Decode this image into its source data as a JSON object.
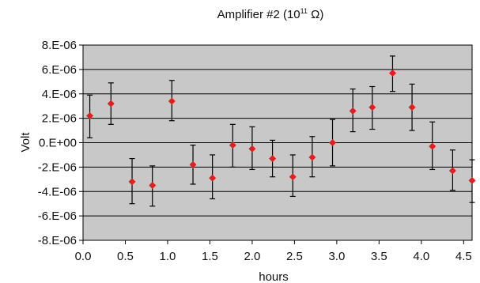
{
  "chart_data": {
    "type": "scatter",
    "title": "Amplifier #2 (10",
    "title_sup": "11",
    "title_suffix": " Ω)",
    "xlabel": "hours",
    "ylabel": "Volt",
    "xlim": [
      0.0,
      4.6
    ],
    "ylim": [
      -8e-06,
      8e-06
    ],
    "grid": true,
    "x_ticks": [
      0.0,
      0.5,
      1.0,
      1.5,
      2.0,
      2.5,
      3.0,
      3.5,
      4.0,
      4.5
    ],
    "x_tick_labels": [
      "0.0",
      "0.5",
      "1.0",
      "1.5",
      "2.0",
      "2.5",
      "3.0",
      "3.5",
      "4.0",
      "4.5"
    ],
    "y_ticks": [
      8e-06,
      6e-06,
      4e-06,
      2e-06,
      0,
      -2e-06,
      -4e-06,
      -6e-06,
      -8e-06
    ],
    "y_tick_labels": [
      "8.E-06",
      "6.E-06",
      "4.E-06",
      "2.E-06",
      "0.E+00",
      "-2.E-06",
      "-4.E-06",
      "-6.E-06",
      "-8.E-06"
    ],
    "colors": {
      "plot_background": "#c8c8c8",
      "marker": "#e02020",
      "error_bar": "#000000",
      "grid": "#000000"
    },
    "points": [
      {
        "x": 0.08,
        "y": 2.2e-06,
        "lo": 4e-07,
        "hi": 3.9e-06
      },
      {
        "x": 0.33,
        "y": 3.2e-06,
        "lo": 1.5e-06,
        "hi": 4.9e-06
      },
      {
        "x": 0.58,
        "y": -3.2e-06,
        "lo": -5e-06,
        "hi": -1.3e-06
      },
      {
        "x": 0.82,
        "y": -3.5e-06,
        "lo": -5.2e-06,
        "hi": -1.9e-06
      },
      {
        "x": 1.05,
        "y": 3.4e-06,
        "lo": 1.8e-06,
        "hi": 5.1e-06
      },
      {
        "x": 1.3,
        "y": -1.8e-06,
        "lo": -3.4e-06,
        "hi": -2e-07
      },
      {
        "x": 1.53,
        "y": -2.9e-06,
        "lo": -4.6e-06,
        "hi": -1e-06
      },
      {
        "x": 1.77,
        "y": -2e-07,
        "lo": -2e-06,
        "hi": 1.5e-06
      },
      {
        "x": 2.0,
        "y": -5e-07,
        "lo": -2.2e-06,
        "hi": 1.3e-06
      },
      {
        "x": 2.24,
        "y": -1.3e-06,
        "lo": -2.8e-06,
        "hi": 2e-07
      },
      {
        "x": 2.48,
        "y": -2.8e-06,
        "lo": -4.4e-06,
        "hi": -1e-06
      },
      {
        "x": 2.71,
        "y": -1.2e-06,
        "lo": -2.8e-06,
        "hi": 5e-07
      },
      {
        "x": 2.95,
        "y": 0.0,
        "lo": -1.9e-06,
        "hi": 1.9e-06
      },
      {
        "x": 3.19,
        "y": 2.6e-06,
        "lo": 9e-07,
        "hi": 4.4e-06
      },
      {
        "x": 3.42,
        "y": 2.9e-06,
        "lo": 1.1e-06,
        "hi": 4.6e-06
      },
      {
        "x": 3.66,
        "y": 5.7e-06,
        "lo": 4.2e-06,
        "hi": 7.1e-06
      },
      {
        "x": 3.89,
        "y": 2.9e-06,
        "lo": 1e-06,
        "hi": 4.8e-06
      },
      {
        "x": 4.13,
        "y": -3e-07,
        "lo": -2.2e-06,
        "hi": 1.7e-06
      },
      {
        "x": 4.37,
        "y": -2.3e-06,
        "lo": -3.9e-06,
        "hi": -6e-07
      },
      {
        "x": 4.6,
        "y": -3.1e-06,
        "lo": -4.9e-06,
        "hi": -1.4e-06
      }
    ]
  }
}
